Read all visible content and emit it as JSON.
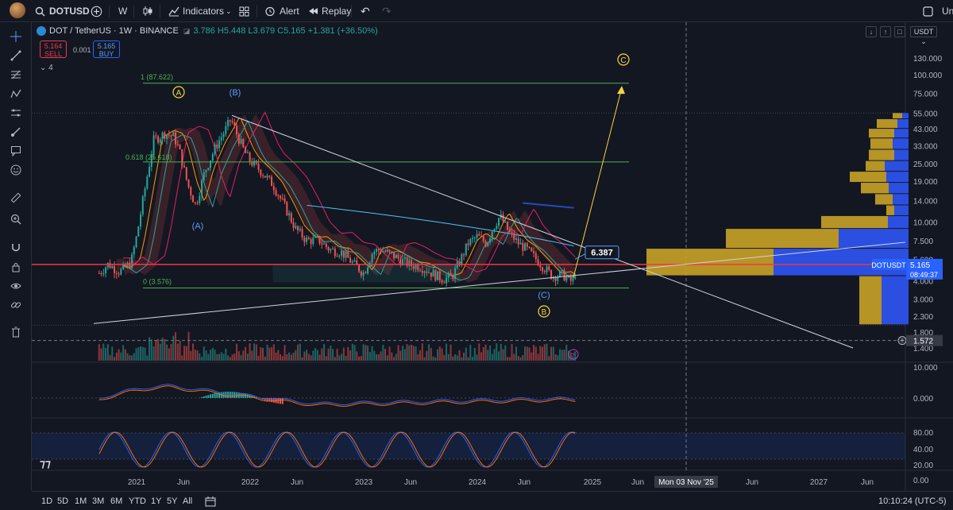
{
  "symbol": "DOTUSD",
  "toolbar": {
    "interval": "W",
    "indicators_label": "Indicators",
    "alert_label": "Alert",
    "replay_label": "Replay",
    "right_cut_label": "Un"
  },
  "legend": {
    "title": "DOT / TetherUS · 1W · BINANCE",
    "ohlc": "3.786 H5.448 L3.679 C5.165 +1.381 (+36.50%)"
  },
  "order_panel": {
    "sell_price": "5.164",
    "sell_label": "SELL",
    "spread": "0.001",
    "buy_price": "5.165",
    "buy_label": "BUY"
  },
  "indicator_count": "4",
  "currency_selector": "USDT",
  "price_axis": {
    "labels": [
      "130.000",
      "100.000",
      "75.000",
      "55.000",
      "43.000",
      "33.000",
      "25.000",
      "19.000",
      "14.000",
      "10.000",
      "7.500",
      "5.600",
      "4.000",
      "3.000",
      "2.300",
      "1.800",
      "1.400"
    ],
    "current_symbol": "DOTUSDT",
    "current_price": "5.165",
    "countdown": "08:49:37",
    "crosshair_value": "1.572"
  },
  "macd_axis": [
    "10.000",
    "0.000"
  ],
  "stoch_axis": [
    "80.00",
    "40.00",
    "20.00",
    "0.00"
  ],
  "time_axis": {
    "labels": [
      "2021",
      "Jun",
      "2022",
      "Jun",
      "2023",
      "Jun",
      "2024",
      "Jun",
      "2025",
      "Jun",
      "Jun",
      "2027",
      "Jun"
    ],
    "crosshair_label": "Mon 03 Nov '25"
  },
  "annotations": {
    "fib_1": "1 (87.622)",
    "fib_0618": "0.618 (25.618)",
    "fib_0": "0 (3.576)",
    "target_label": "6.387",
    "wave_A_circle": "A",
    "wave_B_label": "(B)",
    "wave_A_label": "(A)",
    "wave_C_label": "(C)",
    "wave_B_circle": "B",
    "wave_C_circle": "C"
  },
  "bottom_bar": {
    "ranges": [
      "1D",
      "5D",
      "1M",
      "3M",
      "6M",
      "YTD",
      "1Y",
      "5Y",
      "All"
    ],
    "clock": "10:10:24 (UTC-5)"
  },
  "colors": {
    "background": "#131722",
    "up": "#26a69a",
    "down": "#ef5350",
    "price_line": "#f23645",
    "wave_yellow": "#f5d442",
    "wave_blue": "#5b9cf6",
    "fib_green": "#4caf50",
    "profile_gold": "#c9a227",
    "profile_blue": "#2b4fe0"
  }
}
